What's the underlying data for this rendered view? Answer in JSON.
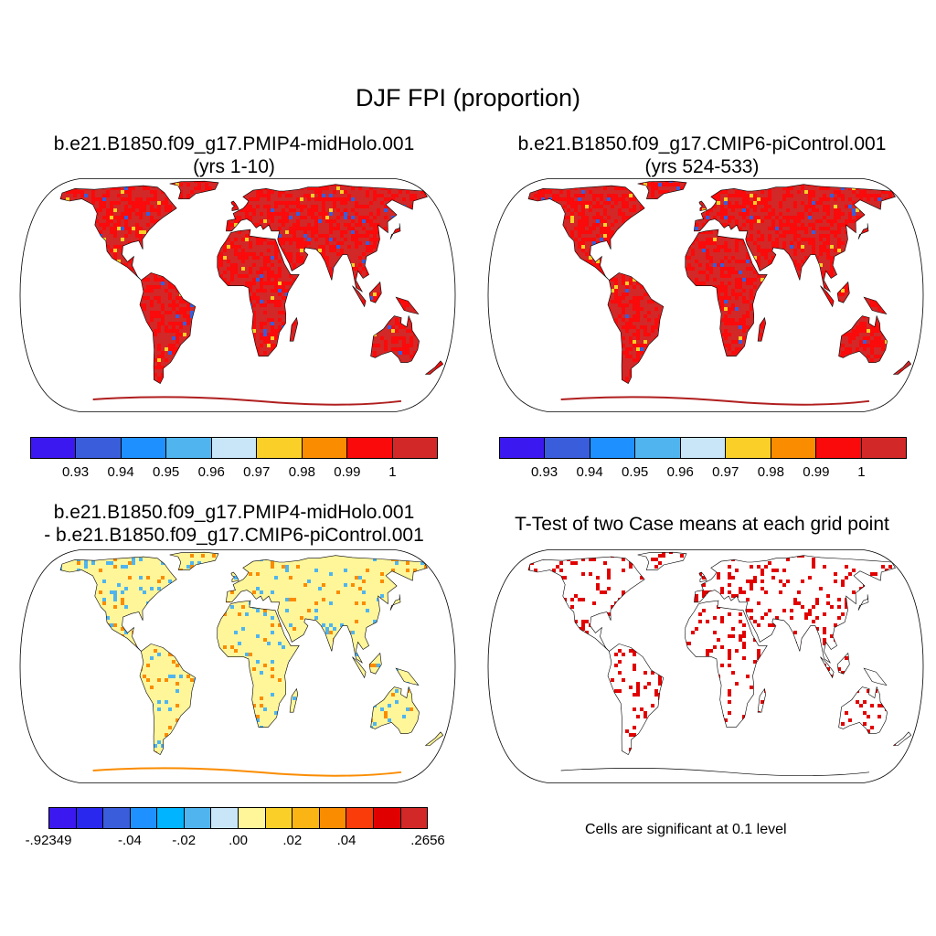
{
  "figure": {
    "title": "DJF FPI (proportion)"
  },
  "panels": [
    {
      "id": "midholo",
      "title_line1": "b.e21.B1850.f09_g17.PMIP4-midHolo.001",
      "title_line2": "(yrs 1-10)",
      "fill_style": "fpi"
    },
    {
      "id": "picontrol",
      "title_line1": "b.e21.B1850.f09_g17.CMIP6-piControl.001",
      "title_line2": "(yrs 524-533)",
      "fill_style": "fpi"
    },
    {
      "id": "difference",
      "title_line1": "b.e21.B1850.f09_g17.PMIP4-midHolo.001",
      "title_line2": "- b.e21.B1850.f09_g17.CMIP6-piControl.001",
      "fill_style": "diff"
    },
    {
      "id": "ttest",
      "title_line1": "T-Test of two Case means at each grid point",
      "title_line2": "",
      "fill_style": "sig",
      "note": "Cells are significant at 0.1 level"
    }
  ],
  "colorbars": {
    "fpi": {
      "colors": [
        "#3c18f0",
        "#3a5ddc",
        "#1e90ff",
        "#50b4ee",
        "#c8e6f8",
        "#fad028",
        "#fa8c00",
        "#fa0a0a",
        "#d22828"
      ],
      "labels": [
        "0.93",
        "0.94",
        "0.95",
        "0.96",
        "0.97",
        "0.98",
        "0.99",
        "1"
      ]
    },
    "diff": {
      "colors": [
        "#3c18f0",
        "#2828ee",
        "#3a5ddc",
        "#1e90ff",
        "#00b4ff",
        "#50b4ee",
        "#c8e6f8",
        "#fff69a",
        "#fad028",
        "#fab414",
        "#fa8c00",
        "#fa3c0a",
        "#e10000",
        "#d22828"
      ],
      "labels": [
        "-.92349",
        "-.04",
        "-.02",
        ".00",
        ".02",
        ".04",
        ".2656"
      ]
    }
  },
  "map_colors": {
    "ocean": "#ffffff",
    "outline": "#000000",
    "fpi_land": "#d22828",
    "fpi_hot": "#fa0a0a",
    "fpi_cool": "#3a5ddc",
    "fpi_mid": "#fad028",
    "diff_land": "#fff69a",
    "diff_pos": "#fa8c00",
    "diff_neg": "#50b4ee",
    "sig_cell": "#e10000",
    "antarctica_line": "#b01e1e"
  }
}
